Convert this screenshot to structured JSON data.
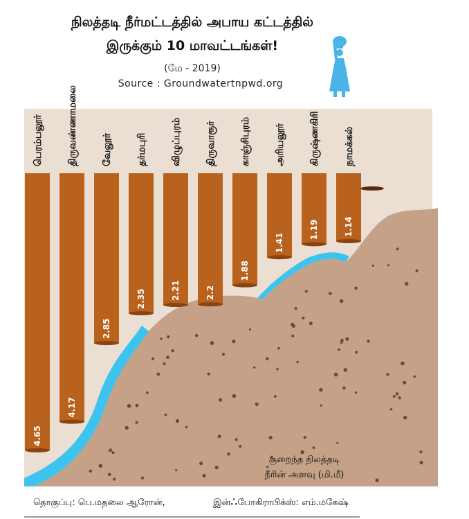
{
  "chart_data": {
    "type": "bar",
    "title_line1": "நிலத்தடி நீர்மட்டத்தில் அபாய கட்டத்தில்",
    "title_line2": "இருக்கும் 10 மாவட்டங்கள்!",
    "subtitle": "(மே - 2019)",
    "source": "Source : Groundwatertnpwd.org",
    "categories": [
      "பெரம்பலூர்",
      "திருவண்ணாமலை",
      "வேலூர்",
      "தர்மபுரி",
      "விழுப்புரம்",
      "திருவாரூர்",
      "காஞ்சிபுரம்",
      "அரியலூர்",
      "கிருஷ்ணகிரி",
      "நாமக்கல்"
    ],
    "values": [
      4.65,
      4.17,
      2.85,
      2.35,
      2.21,
      2.2,
      1.88,
      1.41,
      1.19,
      1.14
    ],
    "value_labels": [
      "4.65",
      "4.17",
      "2.85",
      "2.35",
      "2.21",
      "2.2",
      "1.88",
      "1.41",
      "1.19",
      "1.14"
    ],
    "ylim": [
      0,
      5
    ],
    "grid": false,
    "annotation_line1": "குறைந்த நிலத்தடி",
    "annotation_line2": "நீரின் அளவு (மி.மீ)"
  },
  "colors": {
    "bar": "#b8621e",
    "bar_dark": "#8a4412",
    "soil": "#c4a187",
    "sky": "#ebdfd3",
    "water": "#3cc3ee",
    "figure": "#4bb4e6"
  },
  "icons": {
    "figure": "woman-carrying-pot-icon"
  },
  "footer": {
    "credit_left": "தொகுப்பு: பெ.மதலை ஆரோன்,",
    "credit_right": "இன்ஃபோகிராபிக்ஸ்: எம்.மகேஷ்"
  }
}
